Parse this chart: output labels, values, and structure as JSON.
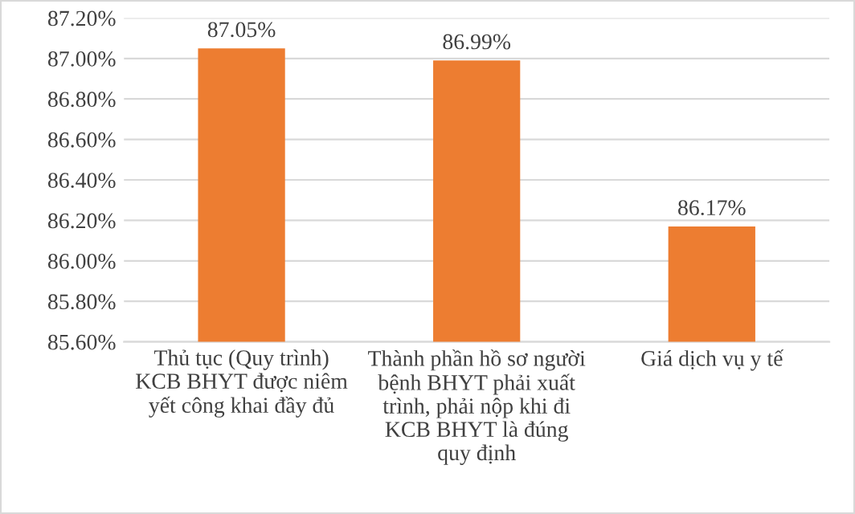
{
  "chart_data": {
    "type": "bar",
    "categories": [
      "Thủ tục (Quy trình)\nKCB BHYT được niêm\nyết công khai đầy đủ",
      "Thành phần hồ sơ người\nbệnh BHYT phải xuất\ntrình, phải nộp khi đi\nKCB BHYT là đúng\nquy định",
      "Giá dịch vụ y tế"
    ],
    "values": [
      87.05,
      86.99,
      86.17
    ],
    "value_labels": [
      "87.05%",
      "86.99%",
      "86.17%"
    ],
    "color": "#ed7d31",
    "ylim": [
      85.6,
      87.2
    ],
    "yticks": [
      {
        "value": 85.6,
        "label": "85.60%"
      },
      {
        "value": 85.8,
        "label": "85.80%"
      },
      {
        "value": 86.0,
        "label": "86.00%"
      },
      {
        "value": 86.2,
        "label": "86.20%"
      },
      {
        "value": 86.4,
        "label": "86.40%"
      },
      {
        "value": 86.6,
        "label": "86.60%"
      },
      {
        "value": 86.8,
        "label": "86.80%"
      },
      {
        "value": 87.0,
        "label": "87.00%"
      },
      {
        "value": 87.2,
        "label": "87.20%"
      }
    ],
    "grid": "y"
  }
}
